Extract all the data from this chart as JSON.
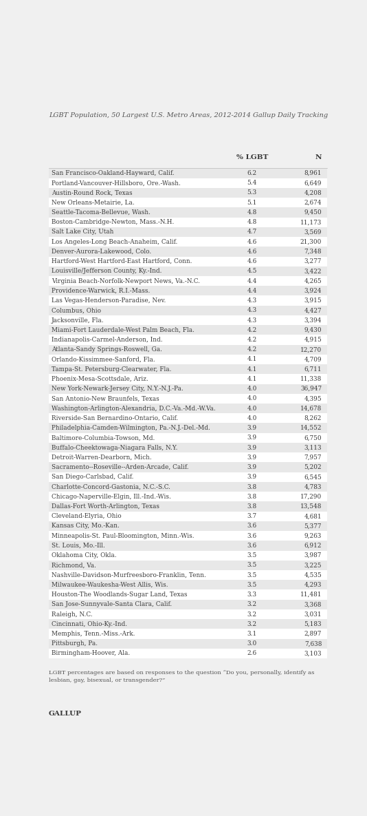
{
  "title": "LGBT Population, 50 Largest U.S. Metro Areas, 2012-2014 Gallup Daily Tracking",
  "col_header_pct": "% LGBT",
  "col_header_n": "N",
  "footnote": "LGBT percentages are based on responses to the question “Do you, personally, identify as\nlesbian, gay, bisexual, or transgender?”",
  "source": "GALLUP",
  "rows": [
    [
      "San Francisco-Oakland-Hayward, Calif.",
      "6.2",
      "8,961"
    ],
    [
      "Portland-Vancouver-Hillsboro, Ore.-Wash.",
      "5.4",
      "6,649"
    ],
    [
      "Austin-Round Rock, Texas",
      "5.3",
      "4,208"
    ],
    [
      "New Orleans-Metairie, La.",
      "5.1",
      "2,674"
    ],
    [
      "Seattle-Tacoma-Bellevue, Wash.",
      "4.8",
      "9,450"
    ],
    [
      "Boston-Cambridge-Newton, Mass.-N.H.",
      "4.8",
      "11,173"
    ],
    [
      "Salt Lake City, Utah",
      "4.7",
      "3,569"
    ],
    [
      "Los Angeles-Long Beach-Anaheim, Calif.",
      "4.6",
      "21,300"
    ],
    [
      "Denver-Aurora-Lakewood, Colo.",
      "4.6",
      "7,348"
    ],
    [
      "Hartford-West Hartford-East Hartford, Conn.",
      "4.6",
      "3,277"
    ],
    [
      "Louisville/Jefferson County, Ky.-Ind.",
      "4.5",
      "3,422"
    ],
    [
      "Virginia Beach-Norfolk-Newport News, Va.-N.C.",
      "4.4",
      "4,265"
    ],
    [
      "Providence-Warwick, R.I.-Mass.",
      "4.4",
      "3,924"
    ],
    [
      "Las Vegas-Henderson-Paradise, Nev.",
      "4.3",
      "3,915"
    ],
    [
      "Columbus, Ohio",
      "4.3",
      "4,427"
    ],
    [
      "Jacksonville, Fla.",
      "4.3",
      "3,394"
    ],
    [
      "Miami-Fort Lauderdale-West Palm Beach, Fla.",
      "4.2",
      "9,430"
    ],
    [
      "Indianapolis-Carmel-Anderson, Ind.",
      "4.2",
      "4,915"
    ],
    [
      "Atlanta-Sandy Springs-Roswell, Ga.",
      "4.2",
      "12,270"
    ],
    [
      "Orlando-Kissimmee-Sanford, Fla.",
      "4.1",
      "4,709"
    ],
    [
      "Tampa-St. Petersburg-Clearwater, Fla.",
      "4.1",
      "6,711"
    ],
    [
      "Phoenix-Mesa-Scottsdale, Ariz.",
      "4.1",
      "11,338"
    ],
    [
      "New York-Newark-Jersey City, N.Y.-N.J.-Pa.",
      "4.0",
      "36,947"
    ],
    [
      "San Antonio-New Braunfels, Texas",
      "4.0",
      "4,395"
    ],
    [
      "Washington-Arlington-Alexandria, D.C.-Va.-Md.-W.Va.",
      "4.0",
      "14,678"
    ],
    [
      "Riverside-San Bernardino-Ontario, Calif.",
      "4.0",
      "8,262"
    ],
    [
      "Philadelphia-Camden-Wilmington, Pa.-N.J.-Del.-Md.",
      "3.9",
      "14,552"
    ],
    [
      "Baltimore-Columbia-Towson, Md.",
      "3.9",
      "6,750"
    ],
    [
      "Buffalo-Cheektowaga-Niagara Falls, N.Y.",
      "3.9",
      "3,113"
    ],
    [
      "Detroit-Warren-Dearborn, Mich.",
      "3.9",
      "7,957"
    ],
    [
      "Sacramento--Roseville--Arden-Arcade, Calif.",
      "3.9",
      "5,202"
    ],
    [
      "San Diego-Carlsbad, Calif.",
      "3.9",
      "6,545"
    ],
    [
      "Charlotte-Concord-Gastonia, N.C.-S.C.",
      "3.8",
      "4,783"
    ],
    [
      "Chicago-Naperville-Elgin, Ill.-Ind.-Wis.",
      "3.8",
      "17,290"
    ],
    [
      "Dallas-Fort Worth-Arlington, Texas",
      "3.8",
      "13,548"
    ],
    [
      "Cleveland-Elyria, Ohio",
      "3.7",
      "4,681"
    ],
    [
      "Kansas City, Mo.-Kan.",
      "3.6",
      "5,377"
    ],
    [
      "Minneapolis-St. Paul-Bloomington, Minn.-Wis.",
      "3.6",
      "9,263"
    ],
    [
      "St. Louis, Mo.-Ill.",
      "3.6",
      "6,912"
    ],
    [
      "Oklahoma City, Okla.",
      "3.5",
      "3,987"
    ],
    [
      "Richmond, Va.",
      "3.5",
      "3,225"
    ],
    [
      "Nashville-Davidson-Murfreesboro-Franklin, Tenn.",
      "3.5",
      "4,535"
    ],
    [
      "Milwaukee-Waukesha-West Allis, Wis.",
      "3.5",
      "4,293"
    ],
    [
      "Houston-The Woodlands-Sugar Land, Texas",
      "3.3",
      "11,481"
    ],
    [
      "San Jose-Sunnyvale-Santa Clara, Calif.",
      "3.2",
      "3,368"
    ],
    [
      "Raleigh, N.C.",
      "3.2",
      "3,031"
    ],
    [
      "Cincinnati, Ohio-Ky.-Ind.",
      "3.2",
      "5,183"
    ],
    [
      "Memphis, Tenn.-Miss.-Ark.",
      "3.1",
      "2,897"
    ],
    [
      "Pittsburgh, Pa.",
      "3.0",
      "7,638"
    ],
    [
      "Birmingham-Hoover, Ala.",
      "2.6",
      "3,103"
    ]
  ],
  "bg_color_odd": "#e8e8e8",
  "bg_color_even": "#ffffff",
  "text_color": "#3a3a3a",
  "header_color": "#3a3a3a",
  "title_color": "#555555",
  "footnote_color": "#555555",
  "source_color": "#3a3a3a",
  "fig_bg_color": "#f0f0f0"
}
